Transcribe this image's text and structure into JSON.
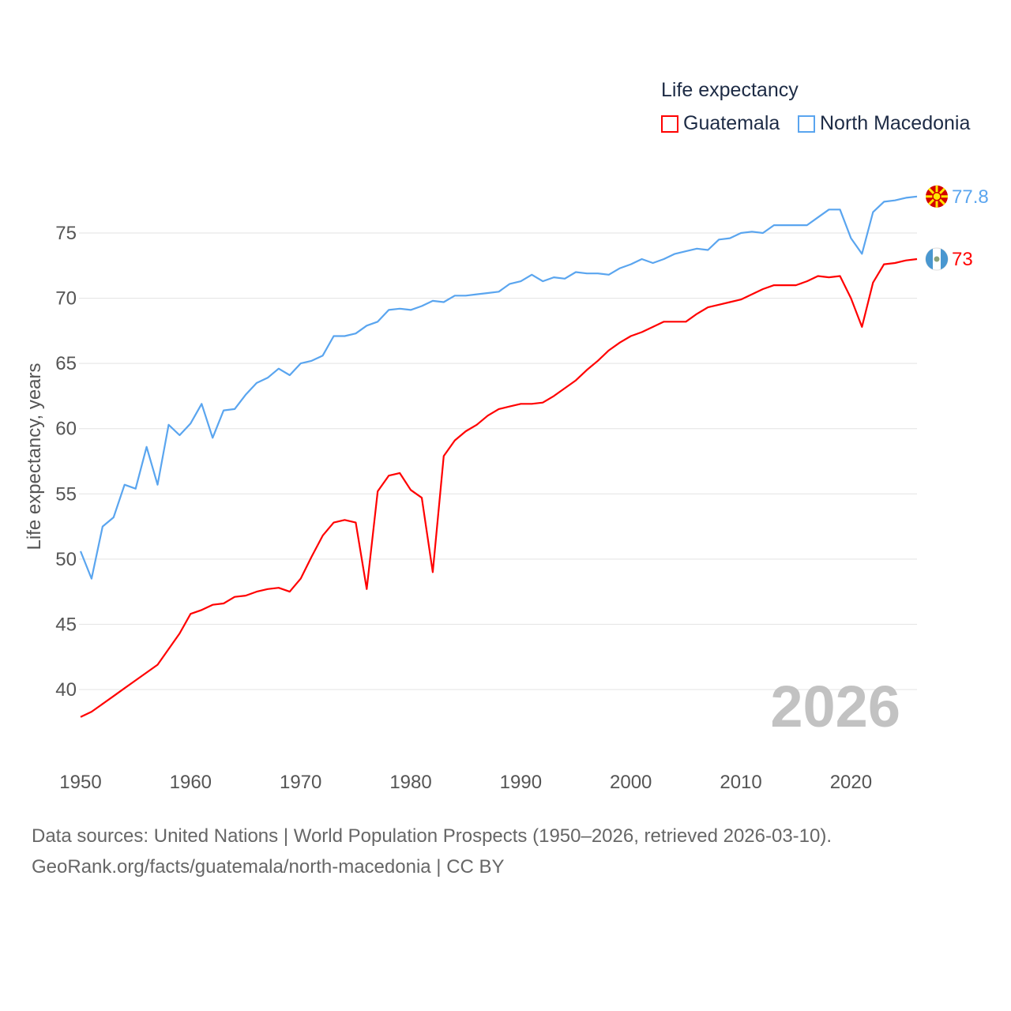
{
  "legend": {
    "title": "Life expectancy",
    "items": [
      {
        "name": "Guatemala",
        "color": "#ff0000"
      },
      {
        "name": "North Macedonia",
        "color": "#5aa5ef"
      }
    ]
  },
  "year_watermark": "2026",
  "sources": {
    "line1": "Data sources: United Nations | World Population Prospects (1950–2026, retrieved 2026-03-10).",
    "line2": "GeoRank.org/facts/guatemala/north-macedonia | CC BY"
  },
  "chart_data": {
    "type": "line",
    "title": "Life expectancy",
    "xlabel": "",
    "ylabel": "Life expectancy, years",
    "xlim": [
      1950,
      2026
    ],
    "ylim": [
      35,
      79
    ],
    "xticks": [
      1950,
      1960,
      1970,
      1980,
      1990,
      2000,
      2010,
      2020
    ],
    "yticks": [
      40,
      45,
      50,
      55,
      60,
      65,
      70,
      75
    ],
    "grid": true,
    "legend_position": "top-right",
    "x": [
      1950,
      1951,
      1952,
      1953,
      1954,
      1955,
      1956,
      1957,
      1958,
      1959,
      1960,
      1961,
      1962,
      1963,
      1964,
      1965,
      1966,
      1967,
      1968,
      1969,
      1970,
      1971,
      1972,
      1973,
      1974,
      1975,
      1976,
      1977,
      1978,
      1979,
      1980,
      1981,
      1982,
      1983,
      1984,
      1985,
      1986,
      1987,
      1988,
      1989,
      1990,
      1991,
      1992,
      1993,
      1994,
      1995,
      1996,
      1997,
      1998,
      1999,
      2000,
      2001,
      2002,
      2003,
      2004,
      2005,
      2006,
      2007,
      2008,
      2009,
      2010,
      2011,
      2012,
      2013,
      2014,
      2015,
      2016,
      2017,
      2018,
      2019,
      2020,
      2021,
      2022,
      2023,
      2024,
      2025,
      2026
    ],
    "series": [
      {
        "name": "Guatemala",
        "color": "#ff0000",
        "end_label": "73",
        "values": [
          37.9,
          38.3,
          38.9,
          39.5,
          40.1,
          40.7,
          41.3,
          41.9,
          43.1,
          44.3,
          45.8,
          46.1,
          46.5,
          46.6,
          47.1,
          47.2,
          47.5,
          47.7,
          47.8,
          47.5,
          48.5,
          50.2,
          51.8,
          52.8,
          53.0,
          52.8,
          47.7,
          55.2,
          56.4,
          56.6,
          55.3,
          54.7,
          49.0,
          57.9,
          59.1,
          59.8,
          60.3,
          61.0,
          61.5,
          61.7,
          61.9,
          61.9,
          62.0,
          62.5,
          63.1,
          63.7,
          64.5,
          65.2,
          66.0,
          66.6,
          67.1,
          67.4,
          67.8,
          68.2,
          68.2,
          68.2,
          68.8,
          69.3,
          69.5,
          69.7,
          69.9,
          70.3,
          70.7,
          71.0,
          71.0,
          71.0,
          71.3,
          71.7,
          71.6,
          71.7,
          70.0,
          67.8,
          71.2,
          72.6,
          72.7,
          72.9,
          73.0
        ]
      },
      {
        "name": "North Macedonia",
        "color": "#5aa5ef",
        "end_label": "77.8",
        "values": [
          50.6,
          48.5,
          52.5,
          53.2,
          55.7,
          55.4,
          58.6,
          55.7,
          60.3,
          59.5,
          60.4,
          61.9,
          59.3,
          61.4,
          61.5,
          62.6,
          63.5,
          63.9,
          64.6,
          64.1,
          65.0,
          65.2,
          65.6,
          67.1,
          67.1,
          67.3,
          67.9,
          68.2,
          69.1,
          69.2,
          69.1,
          69.4,
          69.8,
          69.7,
          70.2,
          70.2,
          70.3,
          70.4,
          70.5,
          71.1,
          71.3,
          71.8,
          71.3,
          71.6,
          71.5,
          72.0,
          71.9,
          71.9,
          71.8,
          72.3,
          72.6,
          73.0,
          72.7,
          73.0,
          73.4,
          73.6,
          73.8,
          73.7,
          74.5,
          74.6,
          75.0,
          75.1,
          75.0,
          75.6,
          75.6,
          75.6,
          75.6,
          76.2,
          76.8,
          76.8,
          74.6,
          73.4,
          76.6,
          77.4,
          77.5,
          77.7,
          77.8
        ]
      }
    ]
  }
}
